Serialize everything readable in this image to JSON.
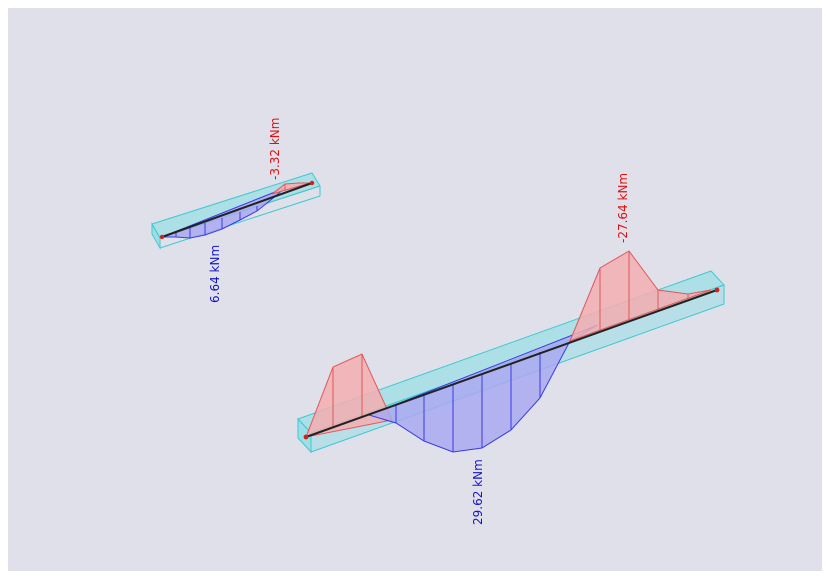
{
  "colors": {
    "viewport_bg": "#dfe0ea",
    "positive_fill": "#f5aeb0",
    "positive_stroke": "#e0585c",
    "negative_fill": "#a9a9f0",
    "negative_stroke": "#3b3be6",
    "member_box": "#6fdde3",
    "member_line": "#222222",
    "node": "#cc2222",
    "label_red": "#e01010",
    "label_blue": "#1515c8"
  },
  "labels": {
    "short_member_max": "-3.32 kNm",
    "short_member_min": "6.64 kNm",
    "long_member_max": "-27.64 kNm",
    "long_member_min": "29.62 kNm"
  }
}
